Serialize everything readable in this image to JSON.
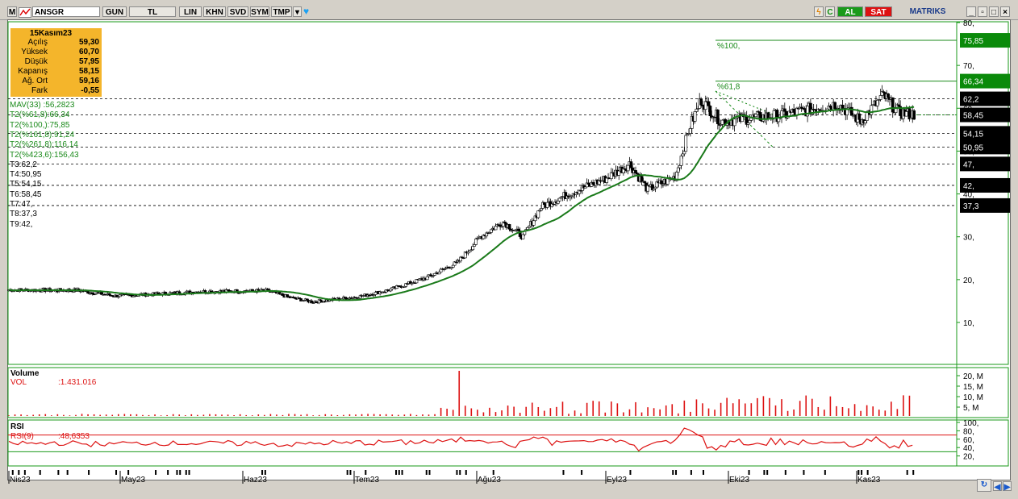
{
  "toolbar": {
    "symbol": "ANSGR",
    "buttons": [
      "GUN",
      "TL",
      "LIN",
      "KHN",
      "SVD",
      "SYM",
      "TMP"
    ],
    "al": "AL",
    "sat": "SAT",
    "brand": "MATRIKS",
    "m_label": "M",
    "c_label": "C"
  },
  "info": {
    "date": "15Kasım23",
    "rows": [
      {
        "label": "Açılış",
        "value": "59,30"
      },
      {
        "label": "Yüksek",
        "value": "60,70"
      },
      {
        "label": "Düşük",
        "value": "57,95"
      },
      {
        "label": "Kapanış",
        "value": "58,15"
      },
      {
        "label": "Ağ. Ort",
        "value": "59,16"
      },
      {
        "label": "Fark",
        "value": "-0,55"
      }
    ]
  },
  "indicators": [
    {
      "text": "MAV(33)",
      "value": ":56,2823",
      "color": "#1a8a1a"
    },
    {
      "text": "T2(%61,8):66,34",
      "color": "#1a8a1a"
    },
    {
      "text": "T2(%100,):75,85",
      "color": "#1a8a1a"
    },
    {
      "text": "T2(%161,8):91,24",
      "color": "#1a8a1a"
    },
    {
      "text": "T2(%261,8):116,14",
      "color": "#1a8a1a"
    },
    {
      "text": "T2(%423,6):156,43",
      "color": "#1a8a1a"
    },
    {
      "text": "T3:62,2",
      "color": "#000000"
    },
    {
      "text": "T4:50,95",
      "color": "#000000"
    },
    {
      "text": "T5:54,15",
      "color": "#000000"
    },
    {
      "text": "T6:58,45",
      "color": "#000000"
    },
    {
      "text": "T7:47,",
      "color": "#000000"
    },
    {
      "text": "T8:37,3",
      "color": "#000000"
    },
    {
      "text": "T9:42,",
      "color": "#000000"
    }
  ],
  "chart_data": {
    "type": "candlestick",
    "ylim": [
      0,
      80
    ],
    "yticks": [
      "80,",
      "70,",
      "60,",
      "50,",
      "40,",
      "30,",
      "20,",
      "10,"
    ],
    "ytick_values": [
      80,
      70,
      60,
      50,
      40,
      30,
      20,
      10
    ],
    "xlabels": [
      "Nis23",
      "May23",
      "Haz23",
      "Tem23",
      "Ağu23",
      "Eyl23",
      "Eki23",
      "Kas23"
    ],
    "fib_levels": [
      {
        "label": "%100,",
        "value": 75.85,
        "tag": "75,85"
      },
      {
        "label": "%61,8",
        "value": 66.34,
        "tag": "66,34"
      }
    ],
    "support_levels": [
      {
        "value": 62.2,
        "tag": "62,2"
      },
      {
        "value": 58.45,
        "tag": "58,45"
      },
      {
        "value": 54.15,
        "tag": "54,15"
      },
      {
        "value": 50.95,
        "tag": "50,95"
      },
      {
        "value": 47,
        "tag": "47,"
      },
      {
        "value": 42,
        "tag": "42,"
      },
      {
        "value": 37.3,
        "tag": "37,3"
      }
    ],
    "ma_label": "MAV(33)",
    "ma_last": 56.2823,
    "colors": {
      "ma": "#1a7a1a",
      "fib": "#1a8a1a",
      "volume": "#dd1111",
      "rsi": "#dd1111",
      "tag_fib": "#0a8a0a",
      "tag_level": "#000000"
    },
    "last_candle": {
      "open": 59.3,
      "high": 60.7,
      "low": 57.95,
      "close": 58.15
    }
  },
  "volume": {
    "title": "Volume",
    "label": "VOL",
    "value": ":1.431.016",
    "yticks": [
      "20, M",
      "15, M",
      "10, M",
      "5, M"
    ]
  },
  "rsi": {
    "title": "RSI",
    "label": "RSI(9)",
    "value": ":48,6353",
    "yticks": [
      "100,",
      "80,",
      "60,",
      "40,",
      "20,"
    ],
    "upper": 70,
    "lower": 30
  }
}
